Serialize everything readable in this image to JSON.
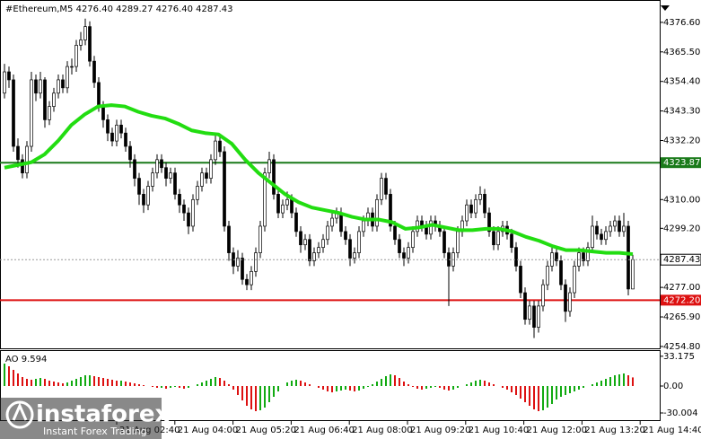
{
  "chart_data": {
    "type": "candlestick",
    "title": "#Ethereum,M5  4276.40 4289.27 4276.40 4287.43",
    "up_color": "#ffffff",
    "down_color": "#000000",
    "outline_color": "#000000",
    "candles": [
      [
        4350,
        4361,
        4348,
        4358
      ],
      [
        4358,
        4360,
        4352,
        4355
      ],
      [
        4355,
        4357,
        4328,
        4330
      ],
      [
        4330,
        4333,
        4322,
        4325
      ],
      [
        4325,
        4327,
        4318,
        4320
      ],
      [
        4320,
        4332,
        4318,
        4330
      ],
      [
        4330,
        4358,
        4328,
        4355
      ],
      [
        4355,
        4357,
        4347,
        4350
      ],
      [
        4350,
        4358,
        4348,
        4355
      ],
      [
        4355,
        4356,
        4337,
        4340
      ],
      [
        4340,
        4347,
        4338,
        4345
      ],
      [
        4345,
        4352,
        4343,
        4350
      ],
      [
        4350,
        4357,
        4348,
        4355
      ],
      [
        4355,
        4357,
        4350,
        4352
      ],
      [
        4352,
        4362,
        4350,
        4360
      ],
      [
        4360,
        4363,
        4357,
        4360
      ],
      [
        4360,
        4370,
        4358,
        4368
      ],
      [
        4368,
        4373,
        4366,
        4370
      ],
      [
        4370,
        4378,
        4368,
        4375
      ],
      [
        4375,
        4377,
        4360,
        4362
      ],
      [
        4362,
        4364,
        4352,
        4354
      ],
      [
        4354,
        4356,
        4343,
        4345
      ],
      [
        4345,
        4347,
        4337,
        4340
      ],
      [
        4340,
        4342,
        4332,
        4335
      ],
      [
        4335,
        4337,
        4330,
        4332
      ],
      [
        4332,
        4340,
        4330,
        4338
      ],
      [
        4338,
        4340,
        4333,
        4335
      ],
      [
        4335,
        4337,
        4328,
        4330
      ],
      [
        4330,
        4332,
        4322,
        4325
      ],
      [
        4325,
        4327,
        4315,
        4318
      ],
      [
        4318,
        4320,
        4308,
        4312
      ],
      [
        4312,
        4314,
        4305,
        4308
      ],
      [
        4308,
        4317,
        4306,
        4315
      ],
      [
        4315,
        4322,
        4313,
        4320
      ],
      [
        4320,
        4327,
        4318,
        4325
      ],
      [
        4325,
        4327,
        4320,
        4322
      ],
      [
        4322,
        4324,
        4315,
        4318
      ],
      [
        4318,
        4322,
        4316,
        4320
      ],
      [
        4320,
        4322,
        4310,
        4312
      ],
      [
        4312,
        4314,
        4305,
        4308
      ],
      [
        4308,
        4310,
        4302,
        4305
      ],
      [
        4305,
        4307,
        4297,
        4300
      ],
      [
        4300,
        4312,
        4298,
        4310
      ],
      [
        4310,
        4317,
        4308,
        4315
      ],
      [
        4315,
        4322,
        4313,
        4320
      ],
      [
        4320,
        4322,
        4316,
        4318
      ],
      [
        4318,
        4327,
        4316,
        4325
      ],
      [
        4325,
        4335,
        4323,
        4332
      ],
      [
        4332,
        4334,
        4326,
        4328
      ],
      [
        4328,
        4330,
        4298,
        4300
      ],
      [
        4300,
        4302,
        4287,
        4290
      ],
      [
        4290,
        4292,
        4282,
        4285
      ],
      [
        4285,
        4291,
        4283,
        4288
      ],
      [
        4288,
        4290,
        4278,
        4280
      ],
      [
        4280,
        4282,
        4276,
        4278
      ],
      [
        4278,
        4285,
        4276,
        4283
      ],
      [
        4283,
        4292,
        4281,
        4290
      ],
      [
        4290,
        4302,
        4288,
        4300
      ],
      [
        4300,
        4322,
        4298,
        4320
      ],
      [
        4320,
        4328,
        4318,
        4325
      ],
      [
        4325,
        4327,
        4310,
        4312
      ],
      [
        4312,
        4314,
        4303,
        4305
      ],
      [
        4305,
        4310,
        4303,
        4308
      ],
      [
        4308,
        4313,
        4306,
        4310
      ],
      [
        4310,
        4312,
        4303,
        4305
      ],
      [
        4305,
        4307,
        4296,
        4298
      ],
      [
        4298,
        4300,
        4290,
        4293
      ],
      [
        4293,
        4297,
        4291,
        4295
      ],
      [
        4295,
        4297,
        4285,
        4287
      ],
      [
        4287,
        4292,
        4285,
        4290
      ],
      [
        4290,
        4294,
        4288,
        4292
      ],
      [
        4292,
        4297,
        4290,
        4295
      ],
      [
        4295,
        4302,
        4293,
        4300
      ],
      [
        4300,
        4305,
        4298,
        4303
      ],
      [
        4303,
        4307,
        4301,
        4305
      ],
      [
        4305,
        4307,
        4296,
        4298
      ],
      [
        4298,
        4300,
        4293,
        4295
      ],
      [
        4295,
        4297,
        4285,
        4288
      ],
      [
        4288,
        4292,
        4286,
        4290
      ],
      [
        4290,
        4300,
        4288,
        4298
      ],
      [
        4298,
        4304,
        4296,
        4302
      ],
      [
        4302,
        4307,
        4300,
        4305
      ],
      [
        4305,
        4307,
        4298,
        4300
      ],
      [
        4300,
        4312,
        4298,
        4310
      ],
      [
        4310,
        4320,
        4308,
        4318
      ],
      [
        4318,
        4320,
        4310,
        4312
      ],
      [
        4312,
        4314,
        4298,
        4300
      ],
      [
        4300,
        4302,
        4293,
        4295
      ],
      [
        4295,
        4297,
        4288,
        4290
      ],
      [
        4290,
        4292,
        4285,
        4288
      ],
      [
        4288,
        4294,
        4286,
        4292
      ],
      [
        4292,
        4300,
        4290,
        4298
      ],
      [
        4298,
        4304,
        4296,
        4302
      ],
      [
        4302,
        4304,
        4298,
        4300
      ],
      [
        4300,
        4302,
        4295,
        4297
      ],
      [
        4297,
        4304,
        4295,
        4302
      ],
      [
        4302,
        4304,
        4298,
        4300
      ],
      [
        4300,
        4302,
        4296,
        4298
      ],
      [
        4298,
        4300,
        4288,
        4290
      ],
      [
        4290,
        4292,
        4270,
        4285
      ],
      [
        4285,
        4292,
        4283,
        4290
      ],
      [
        4290,
        4300,
        4288,
        4298
      ],
      [
        4298,
        4304,
        4296,
        4302
      ],
      [
        4302,
        4310,
        4300,
        4308
      ],
      [
        4308,
        4310,
        4303,
        4305
      ],
      [
        4305,
        4312,
        4303,
        4310
      ],
      [
        4310,
        4315,
        4308,
        4312
      ],
      [
        4312,
        4314,
        4303,
        4305
      ],
      [
        4305,
        4307,
        4296,
        4298
      ],
      [
        4298,
        4300,
        4291,
        4293
      ],
      [
        4293,
        4300,
        4291,
        4298
      ],
      [
        4298,
        4302,
        4296,
        4300
      ],
      [
        4300,
        4302,
        4295,
        4297
      ],
      [
        4297,
        4299,
        4290,
        4292
      ],
      [
        4292,
        4294,
        4283,
        4285
      ],
      [
        4285,
        4287,
        4273,
        4275
      ],
      [
        4275,
        4277,
        4263,
        4265
      ],
      [
        4265,
        4272,
        4263,
        4270
      ],
      [
        4270,
        4272,
        4258,
        4262
      ],
      [
        4262,
        4272,
        4260,
        4270
      ],
      [
        4270,
        4280,
        4268,
        4278
      ],
      [
        4278,
        4287,
        4276,
        4285
      ],
      [
        4285,
        4292,
        4283,
        4290
      ],
      [
        4290,
        4292,
        4285,
        4287
      ],
      [
        4287,
        4289,
        4276,
        4278
      ],
      [
        4278,
        4280,
        4264,
        4268
      ],
      [
        4268,
        4277,
        4266,
        4275
      ],
      [
        4275,
        4287,
        4273,
        4285
      ],
      [
        4285,
        4292,
        4283,
        4290
      ],
      [
        4290,
        4292,
        4285,
        4287
      ],
      [
        4287,
        4294,
        4285,
        4292
      ],
      [
        4292,
        4304,
        4290,
        4300
      ],
      [
        4300,
        4302,
        4295,
        4297
      ],
      [
        4297,
        4299,
        4293,
        4295
      ],
      [
        4295,
        4300,
        4293,
        4298
      ],
      [
        4298,
        4302,
        4296,
        4300
      ],
      [
        4300,
        4304,
        4298,
        4302
      ],
      [
        4302,
        4304,
        4296,
        4298
      ],
      [
        4298,
        4305,
        4296,
        4300
      ],
      [
        4300,
        4302,
        4274,
        4276.4
      ],
      [
        4276.4,
        4289.27,
        4276.4,
        4287.43
      ]
    ],
    "ma": {
      "color": "#22dd11",
      "values": [
        4322,
        4323,
        4324,
        4327,
        4332,
        4338,
        4342,
        4345,
        4345.5,
        4345,
        4343,
        4341.5,
        4340.5,
        4338.5,
        4336,
        4335,
        4334.5,
        4331,
        4325,
        4320,
        4316,
        4312,
        4309,
        4307,
        4306,
        4305,
        4303.5,
        4302.5,
        4302.5,
        4301.5,
        4299,
        4299.5,
        4300.5,
        4299.5,
        4298.5,
        4298.5,
        4299,
        4299,
        4298,
        4296,
        4294.5,
        4292.5,
        4291,
        4291,
        4290.5,
        4290,
        4290,
        4289.5
      ]
    },
    "ylim": [
      4254.1,
      4385.0
    ],
    "yticks": [
      {
        "value": 4376.6,
        "label": "4376.60"
      },
      {
        "value": 4365.5,
        "label": "4365.50"
      },
      {
        "value": 4354.4,
        "label": "4354.40"
      },
      {
        "value": 4343.3,
        "label": "4343.30"
      },
      {
        "value": 4332.2,
        "label": "4332.20"
      },
      {
        "value": 4310,
        "label": "4310.00"
      },
      {
        "value": 4299.2,
        "label": "4299.20"
      },
      {
        "value": 4277,
        "label": "4277.00"
      },
      {
        "value": 4265.9,
        "label": "4265.90"
      },
      {
        "value": 4254.8,
        "label": "4254.80"
      }
    ],
    "levels": [
      {
        "value": 4323.87,
        "label": "4323.87",
        "color": "#1a7a1a"
      },
      {
        "value": 4272.2,
        "label": "4272.20",
        "color": "#dd1111"
      }
    ],
    "current_price": {
      "value": 4287.43,
      "label": "4287.43"
    },
    "xtick_labels": [
      "21 Aug 02:40",
      "21 Aug 04:00",
      "21 Aug 05:20",
      "21 Aug 06:40",
      "21 Aug 08:00",
      "21 Aug 09:20",
      "21 Aug 10:40",
      "21 Aug 12:00",
      "21 Aug 13:20",
      "21 Aug 14:40"
    ],
    "indicator": {
      "name": "AO 9.594",
      "up_color": "#11aa11",
      "down_color": "#dd1111",
      "ylim": [
        -38,
        39
      ],
      "yticks": [
        33.175,
        {
          "value": 0,
          "label": "0.00"
        },
        -30.004
      ],
      "values": [
        25,
        22,
        18,
        14,
        10,
        8,
        7,
        8,
        9,
        8,
        6,
        5,
        4,
        3,
        4,
        6,
        8,
        10,
        12,
        12,
        11,
        10,
        9,
        8,
        7,
        6,
        6,
        5,
        4,
        3,
        2,
        1,
        0,
        -1,
        -2,
        -2,
        -3,
        -2,
        -1,
        -2,
        -3,
        -2,
        0,
        2,
        4,
        6,
        8,
        10,
        9,
        6,
        2,
        -4,
        -10,
        -16,
        -22,
        -26,
        -28,
        -27,
        -24,
        -18,
        -12,
        -6,
        0,
        4,
        6,
        7,
        6,
        4,
        2,
        0,
        -2,
        -4,
        -6,
        -7,
        -6,
        -5,
        -4,
        -5,
        -6,
        -5,
        -3,
        -1,
        2,
        5,
        8,
        11,
        13,
        12,
        9,
        5,
        2,
        -1,
        -3,
        -4,
        -3,
        -2,
        -1,
        -2,
        -4,
        -5,
        -4,
        -2,
        0,
        2,
        4,
        6,
        7,
        6,
        4,
        2,
        0,
        -2,
        -4,
        -7,
        -10,
        -14,
        -18,
        -22,
        -26,
        -28,
        -27,
        -24,
        -20,
        -15,
        -12,
        -10,
        -8,
        -6,
        -4,
        -2,
        0,
        2,
        4,
        6,
        8,
        10,
        12,
        13,
        14,
        12,
        9.594
      ]
    },
    "watermark": {
      "brand": "instaforex",
      "tagline": "Instant Forex Trading"
    }
  }
}
